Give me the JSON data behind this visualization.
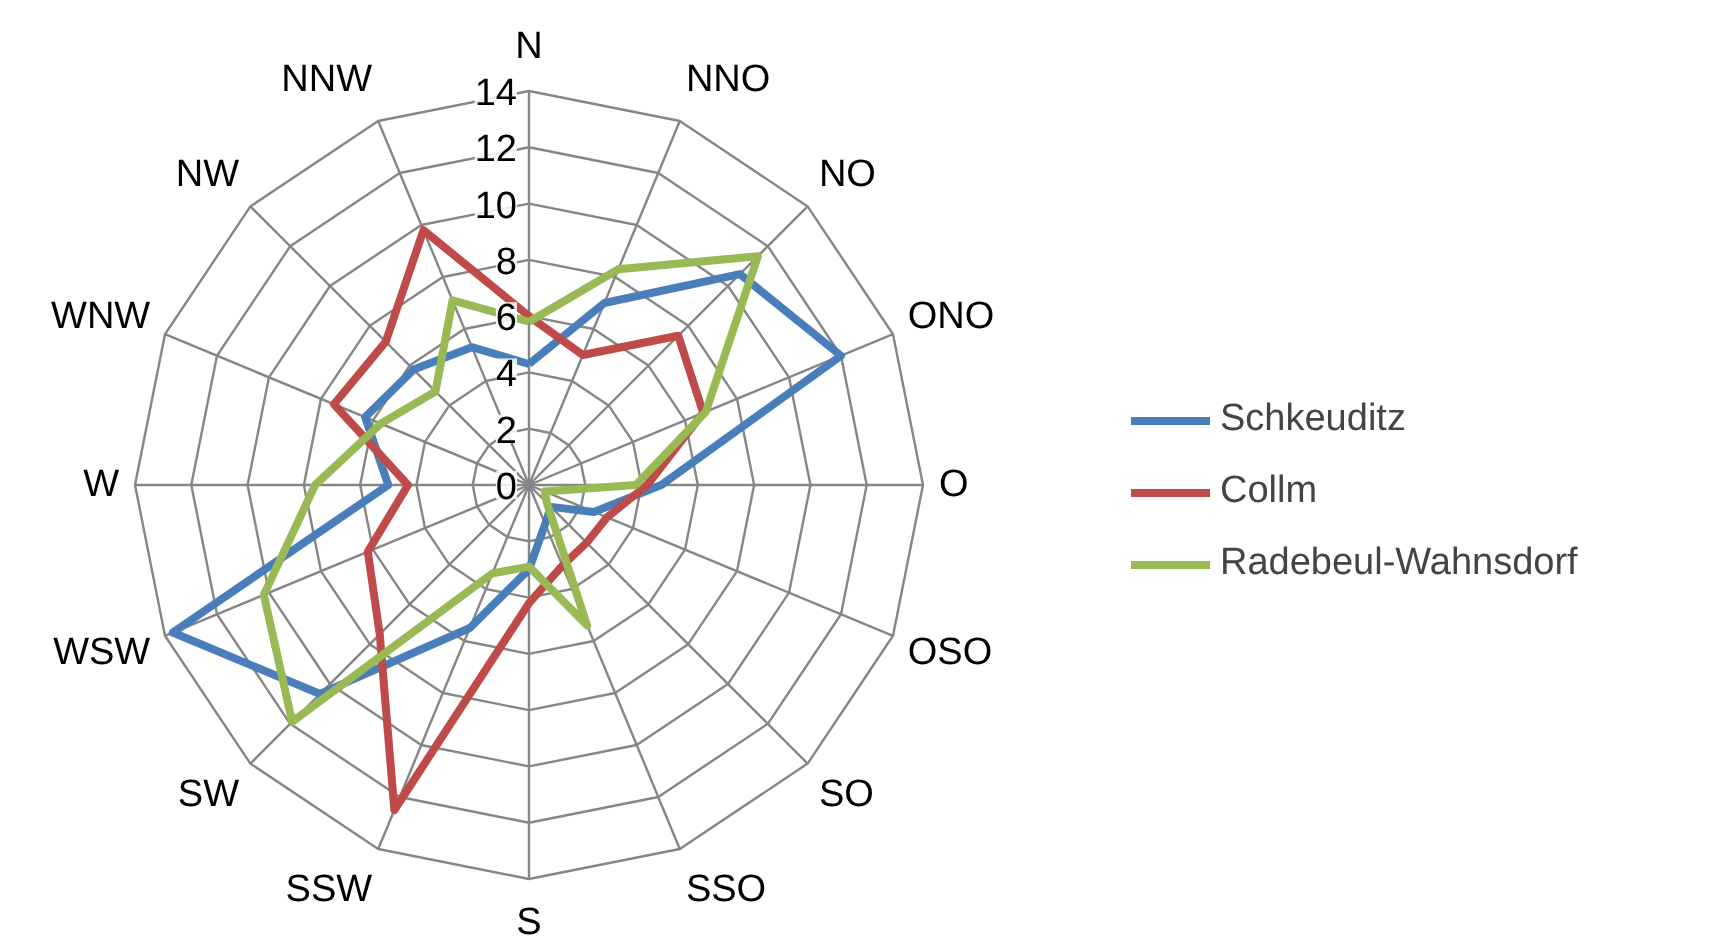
{
  "chart_data": {
    "type": "radar",
    "categories": [
      "N",
      "NNO",
      "NO",
      "ONO",
      "O",
      "OSO",
      "SO",
      "SSO",
      "S",
      "SSW",
      "SW",
      "WSW",
      "W",
      "WNW",
      "NW",
      "NNW"
    ],
    "ylim": [
      0,
      14
    ],
    "yticks": [
      0,
      2,
      4,
      6,
      8,
      10,
      12,
      14
    ],
    "grid": true,
    "legend": "right",
    "line_style": "solid",
    "marker": "none",
    "series": [
      {
        "name": "Schkeuditz",
        "color": "#4a7ebb",
        "values": [
          4.3,
          7,
          10.6,
          12,
          4.7,
          2.5,
          1.1,
          1.5,
          3,
          5.5,
          10.5,
          13.7,
          5,
          6.3,
          5.8,
          5.3
        ]
      },
      {
        "name": "Collm",
        "color": "#be4b48",
        "values": [
          6,
          5,
          7.5,
          6.7,
          4.2,
          3,
          2.9,
          3.1,
          4.2,
          12.5,
          7.5,
          6.2,
          4.3,
          7.5,
          7.2,
          9.8
        ]
      },
      {
        "name": "Radebeul-Wahnsdorf",
        "color": "#98b954",
        "values": [
          5.8,
          8.3,
          11.5,
          6.8,
          3.8,
          0.6,
          0.9,
          5.4,
          2.9,
          3.4,
          11.9,
          10.2,
          7.6,
          5.7,
          4.7,
          7.1
        ]
      }
    ]
  }
}
